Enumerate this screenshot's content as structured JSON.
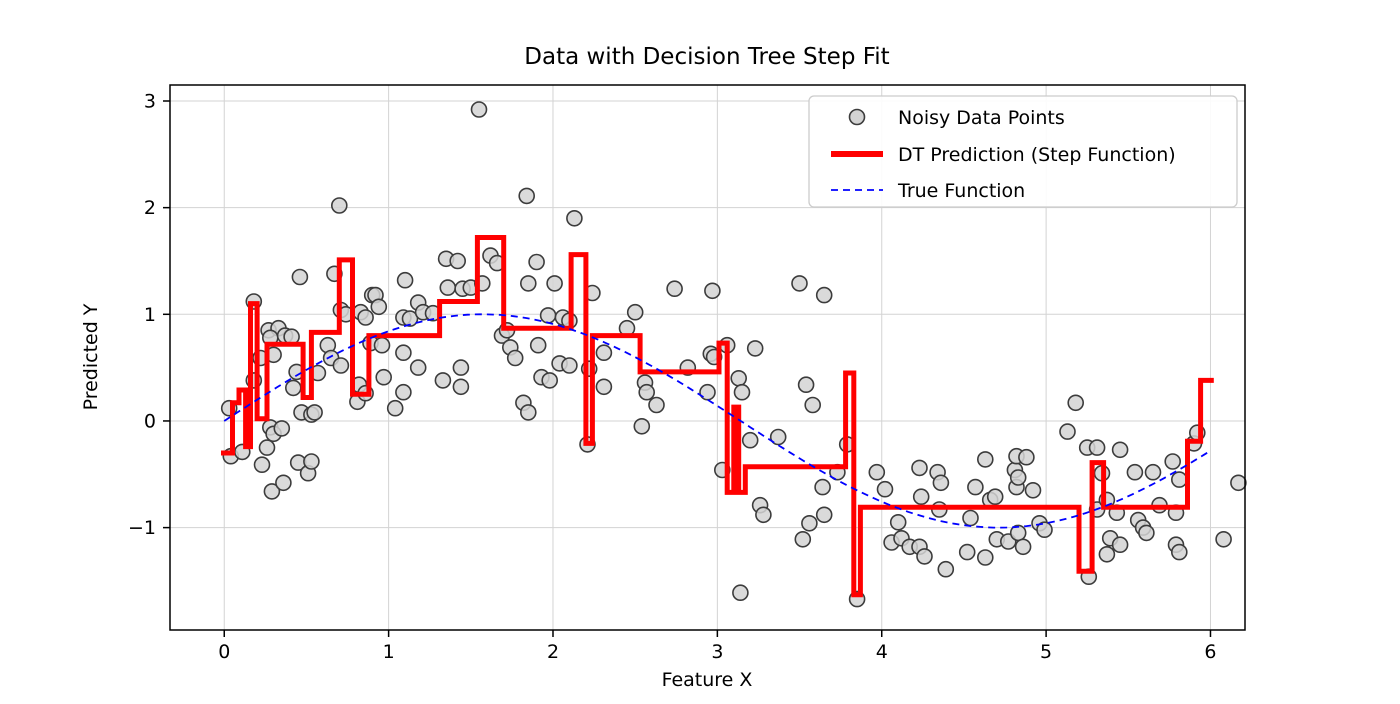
{
  "figure": {
    "background": "#ffffff",
    "frame_color": "#000000",
    "grid_color": "#d3d3d3"
  },
  "legend": {
    "position": "upper right",
    "items": [
      {
        "label": "Noisy Data Points",
        "marker": "circle",
        "fill": "#d3d3d3",
        "edge": "#3c3c3c"
      },
      {
        "label": "DT Prediction (Step Function)",
        "marker": "thick-line",
        "color": "#ff0000"
      },
      {
        "label": "True Function",
        "marker": "dashed-line",
        "color": "#0000ff"
      }
    ]
  },
  "chart_data": {
    "type": "scatter",
    "title": "Data with Decision Tree Step Fit",
    "xlabel": "Feature X",
    "ylabel": "Predicted Y",
    "xlim": [
      -0.33,
      6.21
    ],
    "ylim": [
      -1.96,
      3.15
    ],
    "xticks": [
      0,
      1,
      2,
      3,
      4,
      5,
      6
    ],
    "yticks": [
      -1,
      0,
      1,
      2,
      3
    ],
    "ytick_labels": [
      "−1",
      "0",
      "1",
      "2",
      "3"
    ],
    "grid": true,
    "legend_position": "upper right",
    "series": [
      {
        "name": "Noisy Data Points",
        "type": "scatter",
        "marker_fill": "#d3d3d3",
        "marker_edge": "#3c3c3c",
        "marker_radius": 7.5,
        "points": [
          [
            0.03,
            0.12
          ],
          [
            0.04,
            -0.33
          ],
          [
            0.11,
            -0.29
          ],
          [
            0.18,
            1.12
          ],
          [
            0.18,
            0.38
          ],
          [
            0.22,
            0.59
          ],
          [
            0.23,
            -0.41
          ],
          [
            0.26,
            -0.25
          ],
          [
            0.28,
            -0.06
          ],
          [
            0.29,
            -0.66
          ],
          [
            0.3,
            -0.12
          ],
          [
            0.3,
            0.62
          ],
          [
            0.27,
            0.85
          ],
          [
            0.33,
            0.87
          ],
          [
            0.28,
            0.78
          ],
          [
            0.35,
            -0.07
          ],
          [
            0.36,
            -0.58
          ],
          [
            0.37,
            0.8
          ],
          [
            0.41,
            0.79
          ],
          [
            0.42,
            0.31
          ],
          [
            0.44,
            0.46
          ],
          [
            0.45,
            -0.39
          ],
          [
            0.46,
            1.35
          ],
          [
            0.47,
            0.08
          ],
          [
            0.51,
            -0.49
          ],
          [
            0.53,
            -0.38
          ],
          [
            0.53,
            0.06
          ],
          [
            0.55,
            0.08
          ],
          [
            0.57,
            0.45
          ],
          [
            0.63,
            0.71
          ],
          [
            0.65,
            0.59
          ],
          [
            0.67,
            1.38
          ],
          [
            0.7,
            2.02
          ],
          [
            0.71,
            1.04
          ],
          [
            0.71,
            0.52
          ],
          [
            0.74,
            1.0
          ],
          [
            0.81,
            0.18
          ],
          [
            0.82,
            0.34
          ],
          [
            0.83,
            1.02
          ],
          [
            0.86,
            0.97
          ],
          [
            0.86,
            0.26
          ],
          [
            0.89,
            0.73
          ],
          [
            0.9,
            1.18
          ],
          [
            0.92,
            1.18
          ],
          [
            0.94,
            1.07
          ],
          [
            0.96,
            0.71
          ],
          [
            0.97,
            0.41
          ],
          [
            1.04,
            0.12
          ],
          [
            1.09,
            0.97
          ],
          [
            1.09,
            0.64
          ],
          [
            1.09,
            0.27
          ],
          [
            1.1,
            1.32
          ],
          [
            1.13,
            0.96
          ],
          [
            1.18,
            1.11
          ],
          [
            1.18,
            0.5
          ],
          [
            1.21,
            1.02
          ],
          [
            1.27,
            1.01
          ],
          [
            1.33,
            0.38
          ],
          [
            1.35,
            1.52
          ],
          [
            1.36,
            1.25
          ],
          [
            1.42,
            1.5
          ],
          [
            1.44,
            0.5
          ],
          [
            1.44,
            0.32
          ],
          [
            1.45,
            1.24
          ],
          [
            1.5,
            1.25
          ],
          [
            1.55,
            2.92
          ],
          [
            1.57,
            1.29
          ],
          [
            1.62,
            1.55
          ],
          [
            1.66,
            1.48
          ],
          [
            1.69,
            0.8
          ],
          [
            1.72,
            0.85
          ],
          [
            1.74,
            0.69
          ],
          [
            1.77,
            0.59
          ],
          [
            1.82,
            0.17
          ],
          [
            1.84,
            2.11
          ],
          [
            1.85,
            1.29
          ],
          [
            1.85,
            0.08
          ],
          [
            1.9,
            1.49
          ],
          [
            1.91,
            0.71
          ],
          [
            1.93,
            0.41
          ],
          [
            1.97,
            0.99
          ],
          [
            1.98,
            0.38
          ],
          [
            2.01,
            1.29
          ],
          [
            2.04,
            0.54
          ],
          [
            2.06,
            0.97
          ],
          [
            2.1,
            0.94
          ],
          [
            2.1,
            0.52
          ],
          [
            2.13,
            1.9
          ],
          [
            2.21,
            -0.22
          ],
          [
            2.24,
            1.2
          ],
          [
            2.22,
            0.49
          ],
          [
            2.31,
            0.64
          ],
          [
            2.31,
            0.32
          ],
          [
            2.45,
            0.87
          ],
          [
            2.5,
            1.02
          ],
          [
            2.54,
            -0.05
          ],
          [
            2.56,
            0.36
          ],
          [
            2.57,
            0.27
          ],
          [
            2.63,
            0.15
          ],
          [
            2.74,
            1.24
          ],
          [
            2.82,
            0.5
          ],
          [
            2.94,
            0.27
          ],
          [
            2.96,
            0.63
          ],
          [
            2.98,
            0.6
          ],
          [
            2.97,
            1.22
          ],
          [
            3.03,
            -0.46
          ],
          [
            3.06,
            0.71
          ],
          [
            3.13,
            0.4
          ],
          [
            3.15,
            0.27
          ],
          [
            3.14,
            -1.61
          ],
          [
            3.2,
            -0.18
          ],
          [
            3.23,
            0.68
          ],
          [
            3.26,
            -0.79
          ],
          [
            3.28,
            -0.88
          ],
          [
            3.37,
            -0.15
          ],
          [
            3.5,
            1.29
          ],
          [
            3.65,
            1.18
          ],
          [
            3.52,
            -1.11
          ],
          [
            3.54,
            0.34
          ],
          [
            3.56,
            -0.96
          ],
          [
            3.58,
            0.15
          ],
          [
            3.64,
            -0.62
          ],
          [
            3.65,
            -0.88
          ],
          [
            3.73,
            -0.48
          ],
          [
            3.79,
            -0.22
          ],
          [
            3.85,
            -1.67
          ],
          [
            3.97,
            -0.48
          ],
          [
            4.02,
            -0.64
          ],
          [
            4.06,
            -1.14
          ],
          [
            4.1,
            -0.95
          ],
          [
            4.12,
            -1.1
          ],
          [
            4.17,
            -1.18
          ],
          [
            4.23,
            -1.18
          ],
          [
            4.23,
            -0.44
          ],
          [
            4.24,
            -0.71
          ],
          [
            4.26,
            -1.27
          ],
          [
            4.34,
            -0.48
          ],
          [
            4.35,
            -0.83
          ],
          [
            4.36,
            -0.58
          ],
          [
            4.39,
            -1.39
          ],
          [
            4.52,
            -1.23
          ],
          [
            4.54,
            -0.91
          ],
          [
            4.57,
            -0.62
          ],
          [
            4.63,
            -1.28
          ],
          [
            4.63,
            -0.36
          ],
          [
            4.66,
            -0.74
          ],
          [
            4.69,
            -0.71
          ],
          [
            4.7,
            -1.11
          ],
          [
            4.77,
            -1.13
          ],
          [
            4.81,
            -0.46
          ],
          [
            4.82,
            -0.33
          ],
          [
            4.82,
            -0.62
          ],
          [
            4.83,
            -0.53
          ],
          [
            4.83,
            -1.05
          ],
          [
            4.86,
            -1.18
          ],
          [
            4.88,
            -0.34
          ],
          [
            4.92,
            -0.65
          ],
          [
            4.96,
            -0.96
          ],
          [
            4.99,
            -1.02
          ],
          [
            5.13,
            -0.1
          ],
          [
            5.18,
            0.17
          ],
          [
            5.25,
            -0.25
          ],
          [
            5.26,
            -1.46
          ],
          [
            5.31,
            -0.25
          ],
          [
            5.31,
            -0.83
          ],
          [
            5.34,
            -0.49
          ],
          [
            5.37,
            -0.74
          ],
          [
            5.37,
            -1.25
          ],
          [
            5.39,
            -1.1
          ],
          [
            5.43,
            -0.86
          ],
          [
            5.45,
            -0.27
          ],
          [
            5.45,
            -1.16
          ],
          [
            5.54,
            -0.48
          ],
          [
            5.56,
            -0.93
          ],
          [
            5.59,
            -1.0
          ],
          [
            5.61,
            -1.05
          ],
          [
            5.65,
            -0.48
          ],
          [
            5.69,
            -0.79
          ],
          [
            5.77,
            -0.38
          ],
          [
            5.79,
            -0.86
          ],
          [
            5.79,
            -1.16
          ],
          [
            5.81,
            -0.55
          ],
          [
            5.81,
            -1.23
          ],
          [
            5.9,
            -0.21
          ],
          [
            5.92,
            -0.11
          ],
          [
            6.08,
            -1.11
          ],
          [
            6.17,
            -0.58
          ]
        ]
      },
      {
        "name": "DT Prediction (Step Function)",
        "type": "step",
        "color": "#ff0000",
        "linewidth": 5,
        "segments": [
          [
            -0.02,
            0.05,
            -0.3
          ],
          [
            0.05,
            0.09,
            0.17
          ],
          [
            0.09,
            0.13,
            0.29
          ],
          [
            0.13,
            0.16,
            -0.24
          ],
          [
            0.16,
            0.2,
            1.1
          ],
          [
            0.2,
            0.26,
            0.02
          ],
          [
            0.26,
            0.48,
            0.72
          ],
          [
            0.48,
            0.53,
            0.22
          ],
          [
            0.53,
            0.7,
            0.83
          ],
          [
            0.7,
            0.78,
            1.51
          ],
          [
            0.78,
            0.88,
            0.25
          ],
          [
            0.88,
            1.31,
            0.8
          ],
          [
            1.31,
            1.54,
            1.12
          ],
          [
            1.54,
            1.7,
            1.72
          ],
          [
            1.7,
            2.11,
            0.87
          ],
          [
            2.11,
            2.2,
            1.56
          ],
          [
            2.2,
            2.24,
            -0.21
          ],
          [
            2.24,
            2.53,
            0.8
          ],
          [
            2.53,
            3.01,
            0.46
          ],
          [
            3.01,
            3.06,
            0.73
          ],
          [
            3.06,
            3.1,
            -0.67
          ],
          [
            3.1,
            3.13,
            0.13
          ],
          [
            3.13,
            3.17,
            -0.67
          ],
          [
            3.17,
            3.78,
            -0.43
          ],
          [
            3.78,
            3.83,
            0.45
          ],
          [
            3.83,
            3.87,
            -1.63
          ],
          [
            3.87,
            5.2,
            -0.81
          ],
          [
            5.2,
            5.28,
            -1.41
          ],
          [
            5.28,
            5.35,
            -0.39
          ],
          [
            5.35,
            5.86,
            -0.81
          ],
          [
            5.86,
            5.94,
            -0.19
          ],
          [
            5.94,
            6.02,
            0.38
          ]
        ]
      },
      {
        "name": "True Function",
        "type": "line",
        "style": "dashed",
        "color": "#0000ff",
        "linewidth": 1.8,
        "formula": "sin(x)",
        "x_range": [
          0,
          6.02
        ]
      }
    ]
  }
}
